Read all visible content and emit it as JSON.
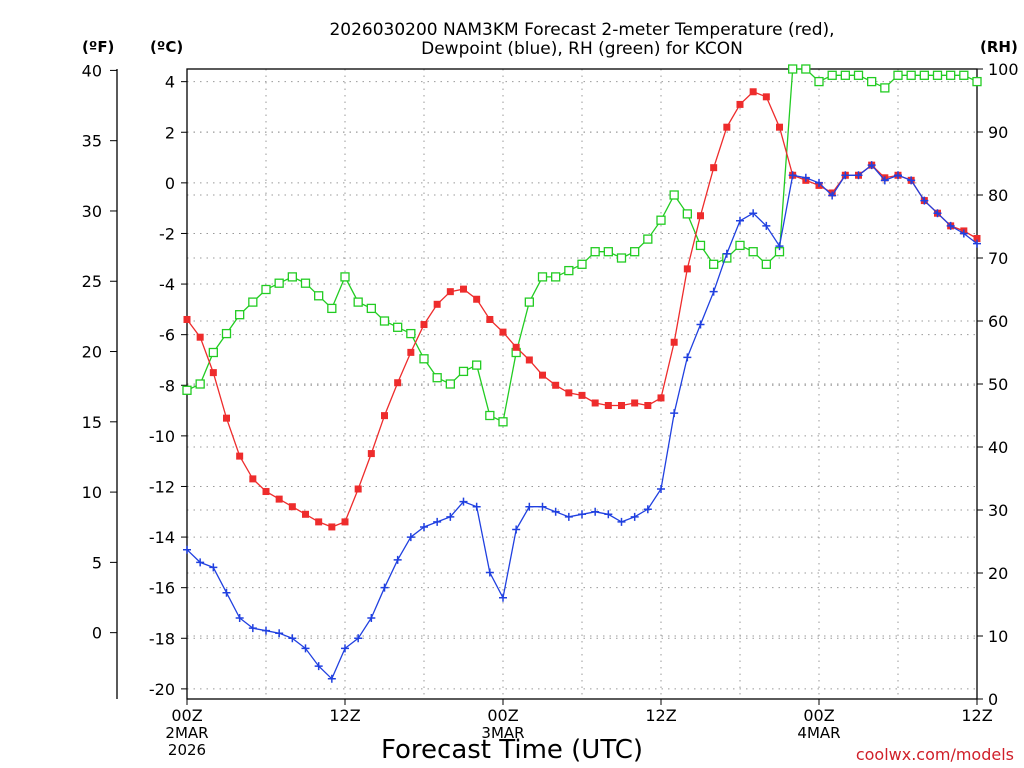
{
  "chart_data": {
    "type": "line",
    "title_lines": [
      "2026030200 NAM3KM Forecast 2-meter Temperature (red),",
      "Dewpoint (blue), RH (green) for KCON"
    ],
    "xlabel": "Forecast Time (UTC)",
    "credit": "coolwx.com/models",
    "units": {
      "f": "(ºF)",
      "c": "(ºC)",
      "rh": "(RH)"
    },
    "x_ticks": [
      {
        "h": 0,
        "lines": [
          "00Z",
          "2MAR",
          "2026"
        ]
      },
      {
        "h": 12,
        "lines": [
          "12Z"
        ]
      },
      {
        "h": 24,
        "lines": [
          "00Z",
          "3MAR"
        ]
      },
      {
        "h": 36,
        "lines": [
          "12Z"
        ]
      },
      {
        "h": 48,
        "lines": [
          "00Z",
          "4MAR"
        ]
      },
      {
        "h": 60,
        "lines": [
          "12Z"
        ]
      }
    ],
    "xlim": [
      0,
      60
    ],
    "ylim_c": [
      -20.4,
      4.5
    ],
    "ylim_rh": [
      0,
      100
    ],
    "c_ticks": [
      "4",
      "2",
      "0",
      "-2",
      "-4",
      "-6",
      "-8",
      "-10",
      "-12",
      "-14",
      "-16",
      "-18",
      "-20"
    ],
    "c_tick_values": [
      4,
      2,
      0,
      -2,
      -4,
      -6,
      -8,
      -10,
      -12,
      -14,
      -16,
      -18,
      -20
    ],
    "f_ticks": [
      "40",
      "35",
      "30",
      "25",
      "20",
      "15",
      "10",
      "5",
      "0"
    ],
    "f_tick_values": [
      40,
      35,
      30,
      25,
      20,
      15,
      10,
      5,
      0
    ],
    "rh_ticks": [
      "100",
      "90",
      "80",
      "70",
      "60",
      "50",
      "40",
      "30",
      "20",
      "10",
      "0"
    ],
    "rh_tick_values": [
      100,
      90,
      80,
      70,
      60,
      50,
      40,
      30,
      20,
      10,
      0
    ],
    "grid": true,
    "series": [
      {
        "name": "Temperature",
        "color": "#ee2c2c",
        "marker": "square-filled",
        "hours": [
          0,
          1,
          2,
          3,
          4,
          5,
          6,
          7,
          8,
          9,
          10,
          11,
          12,
          13,
          14,
          15,
          16,
          17,
          18,
          19,
          20,
          21,
          22,
          23,
          24,
          25,
          26,
          27,
          28,
          29,
          30,
          31,
          32,
          33,
          34,
          35,
          36,
          37,
          38,
          39,
          40,
          41,
          42,
          43,
          44,
          45,
          46,
          47,
          48,
          49,
          50,
          51,
          52,
          53,
          54,
          55,
          56,
          57,
          58,
          59,
          60
        ],
        "values": [
          -5.4,
          -6.1,
          -7.5,
          -9.3,
          -10.8,
          -11.7,
          -12.2,
          -12.5,
          -12.8,
          -13.1,
          -13.4,
          -13.6,
          -13.4,
          -12.1,
          -10.7,
          -9.2,
          -7.9,
          -6.7,
          -5.6,
          -4.8,
          -4.3,
          -4.2,
          -4.6,
          -5.4,
          -5.9,
          -6.5,
          -7.0,
          -7.6,
          -8.0,
          -8.3,
          -8.4,
          -8.7,
          -8.8,
          -8.8,
          -8.7,
          -8.8,
          -8.5,
          -6.3,
          -3.4,
          -1.3,
          0.6,
          2.2,
          3.1,
          3.6,
          3.4,
          2.2,
          0.3,
          0.1,
          -0.1,
          -0.4,
          0.3,
          0.3,
          0.7,
          0.2,
          0.3,
          0.1,
          -0.7,
          -1.2,
          -1.7,
          -1.9,
          -2.2
        ]
      },
      {
        "name": "Dewpoint",
        "color": "#2040e0",
        "marker": "plus",
        "hours": [
          0,
          1,
          2,
          3,
          4,
          5,
          6,
          7,
          8,
          9,
          10,
          11,
          12,
          13,
          14,
          15,
          16,
          17,
          18,
          19,
          20,
          21,
          22,
          23,
          24,
          25,
          26,
          27,
          28,
          29,
          30,
          31,
          32,
          33,
          34,
          35,
          36,
          37,
          38,
          39,
          40,
          41,
          42,
          43,
          44,
          45,
          46,
          47,
          48,
          49,
          50,
          51,
          52,
          53,
          54,
          55,
          56,
          57,
          58,
          59,
          60
        ],
        "values": [
          -14.5,
          -15.0,
          -15.2,
          -16.2,
          -17.2,
          -17.6,
          -17.7,
          -17.8,
          -18.0,
          -18.4,
          -19.1,
          -19.6,
          -18.4,
          -18.0,
          -17.2,
          -16.0,
          -14.9,
          -14.0,
          -13.6,
          -13.4,
          -13.2,
          -12.6,
          -12.8,
          -15.4,
          -16.4,
          -13.7,
          -12.8,
          -12.8,
          -13.0,
          -13.2,
          -13.1,
          -13.0,
          -13.1,
          -13.4,
          -13.2,
          -12.9,
          -12.1,
          -9.1,
          -6.9,
          -5.6,
          -4.3,
          -2.8,
          -1.5,
          -1.2,
          -1.7,
          -2.5,
          0.3,
          0.2,
          0.0,
          -0.5,
          0.3,
          0.3,
          0.7,
          0.1,
          0.3,
          0.1,
          -0.7,
          -1.2,
          -1.7,
          -2.0,
          -2.4
        ]
      },
      {
        "name": "RH",
        "color": "#22cc22",
        "marker": "square-open",
        "hours": [
          0,
          1,
          2,
          3,
          4,
          5,
          6,
          7,
          8,
          9,
          10,
          11,
          12,
          13,
          14,
          15,
          16,
          17,
          18,
          19,
          20,
          21,
          22,
          23,
          24,
          25,
          26,
          27,
          28,
          29,
          30,
          31,
          32,
          33,
          34,
          35,
          36,
          37,
          38,
          39,
          40,
          41,
          42,
          43,
          44,
          45,
          46,
          47,
          48,
          49,
          50,
          51,
          52,
          53,
          54,
          55,
          56,
          57,
          58,
          59,
          60
        ],
        "values": [
          49,
          50,
          55,
          58,
          61,
          63,
          65,
          66,
          67,
          66,
          64,
          62,
          67,
          63,
          62,
          60,
          59,
          58,
          54,
          51,
          50,
          52,
          53,
          45,
          44,
          55,
          63,
          67,
          67,
          68,
          69,
          71,
          71,
          70,
          71,
          73,
          76,
          80,
          77,
          72,
          69,
          70,
          72,
          71,
          69,
          71,
          100,
          100,
          98,
          99,
          99,
          99,
          98,
          97,
          99,
          99,
          99,
          99,
          99,
          99,
          98
        ]
      }
    ]
  }
}
